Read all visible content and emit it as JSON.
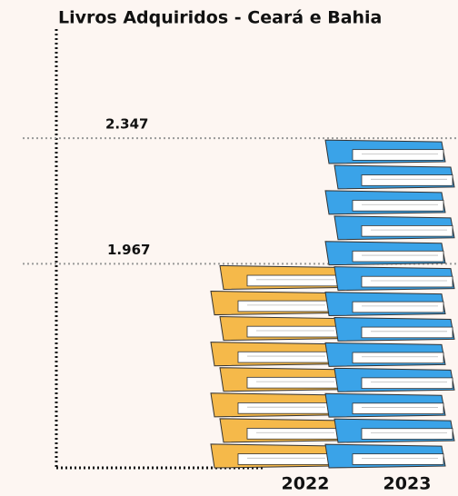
{
  "chart_data": {
    "type": "pictograph-bar",
    "title": "Livros Adquiridos - Ceará e Bahia",
    "categories": [
      "2022",
      "2023"
    ],
    "values": [
      1967,
      2347
    ],
    "value_labels": [
      "1.967",
      "2.347"
    ],
    "colors": [
      "#f5b94a",
      "#3aa3e8"
    ],
    "ylim": [
      1350,
      2350
    ]
  }
}
